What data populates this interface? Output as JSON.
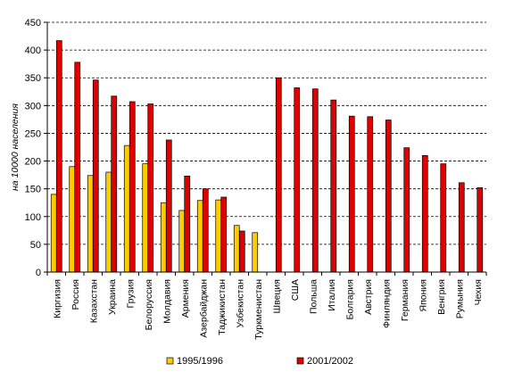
{
  "chart_data": {
    "type": "bar",
    "ylabel": "на 10000 населения",
    "ylim": [
      0,
      450
    ],
    "yticks": [
      0,
      50,
      100,
      150,
      200,
      250,
      300,
      350,
      400,
      450
    ],
    "grid": true,
    "legend_position": "bottom",
    "categories": [
      "Киргизия",
      "Россия",
      "Казахстан",
      "Украина",
      "Грузия",
      "Белоруссия",
      "Молдавия",
      "Армения",
      "Азербайджан",
      "Таджикистан",
      "Узбекистан",
      "Туркменистан",
      "Швеция",
      "США",
      "Польша",
      "Италия",
      "Болгария",
      "Австрия",
      "Финляндия",
      "Германия",
      "Япония",
      "Венгрия",
      "Румыния",
      "Чехия"
    ],
    "series": [
      {
        "name": "1995/1996",
        "color": "#ffcc00",
        "values": [
          140,
          190,
          174,
          180,
          228,
          195,
          125,
          111,
          129,
          130,
          84,
          71,
          null,
          null,
          null,
          null,
          null,
          null,
          null,
          null,
          null,
          null,
          null,
          null
        ]
      },
      {
        "name": "2001/2002",
        "color": "#e00000",
        "values": [
          417,
          378,
          346,
          317,
          307,
          303,
          238,
          173,
          150,
          135,
          74,
          null,
          350,
          332,
          330,
          310,
          281,
          280,
          274,
          224,
          210,
          195,
          161,
          152
        ]
      }
    ]
  }
}
